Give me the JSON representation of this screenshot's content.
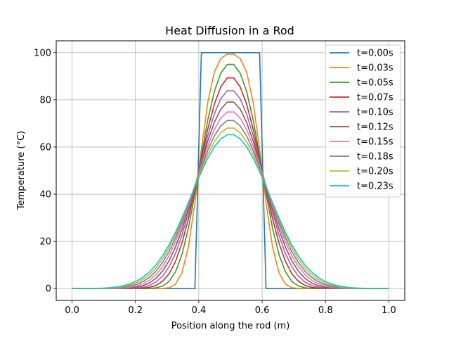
{
  "chart_data": {
    "type": "line",
    "title": "Heat Diffusion in a Rod",
    "xlabel": "Position along the rod (m)",
    "ylabel": "Temperature (°C)",
    "xlim": [
      -0.05,
      1.05
    ],
    "ylim": [
      -5,
      105
    ],
    "xticks": [
      0.0,
      0.2,
      0.4,
      0.6,
      0.8,
      1.0
    ],
    "xtick_labels": [
      "0.0",
      "0.2",
      "0.4",
      "0.6",
      "0.8",
      "1.0"
    ],
    "yticks": [
      0,
      20,
      40,
      60,
      80,
      100
    ],
    "ytick_labels": [
      "0",
      "20",
      "40",
      "60",
      "80",
      "100"
    ],
    "grid": true,
    "legend": "top-right",
    "x_range": [
      0.0,
      1.0
    ],
    "pulse": [
      0.4,
      0.6
    ],
    "pulse_value": 100,
    "series": [
      {
        "name": "t=0.00s",
        "t": 0.0,
        "color": "#1f77b4"
      },
      {
        "name": "t=0.03s",
        "t": 0.025,
        "color": "#ff7f0e"
      },
      {
        "name": "t=0.05s",
        "t": 0.05,
        "color": "#2ca02c"
      },
      {
        "name": "t=0.07s",
        "t": 0.075,
        "color": "#d62728"
      },
      {
        "name": "t=0.10s",
        "t": 0.1,
        "color": "#9467bd"
      },
      {
        "name": "t=0.12s",
        "t": 0.125,
        "color": "#8c564b"
      },
      {
        "name": "t=0.15s",
        "t": 0.15,
        "color": "#e377c2"
      },
      {
        "name": "t=0.18s",
        "t": 0.175,
        "color": "#7f7f7f"
      },
      {
        "name": "t=0.20s",
        "t": 0.2,
        "color": "#bcbd22"
      },
      {
        "name": "t=0.23s",
        "t": 0.225,
        "color": "#17becf"
      }
    ]
  }
}
